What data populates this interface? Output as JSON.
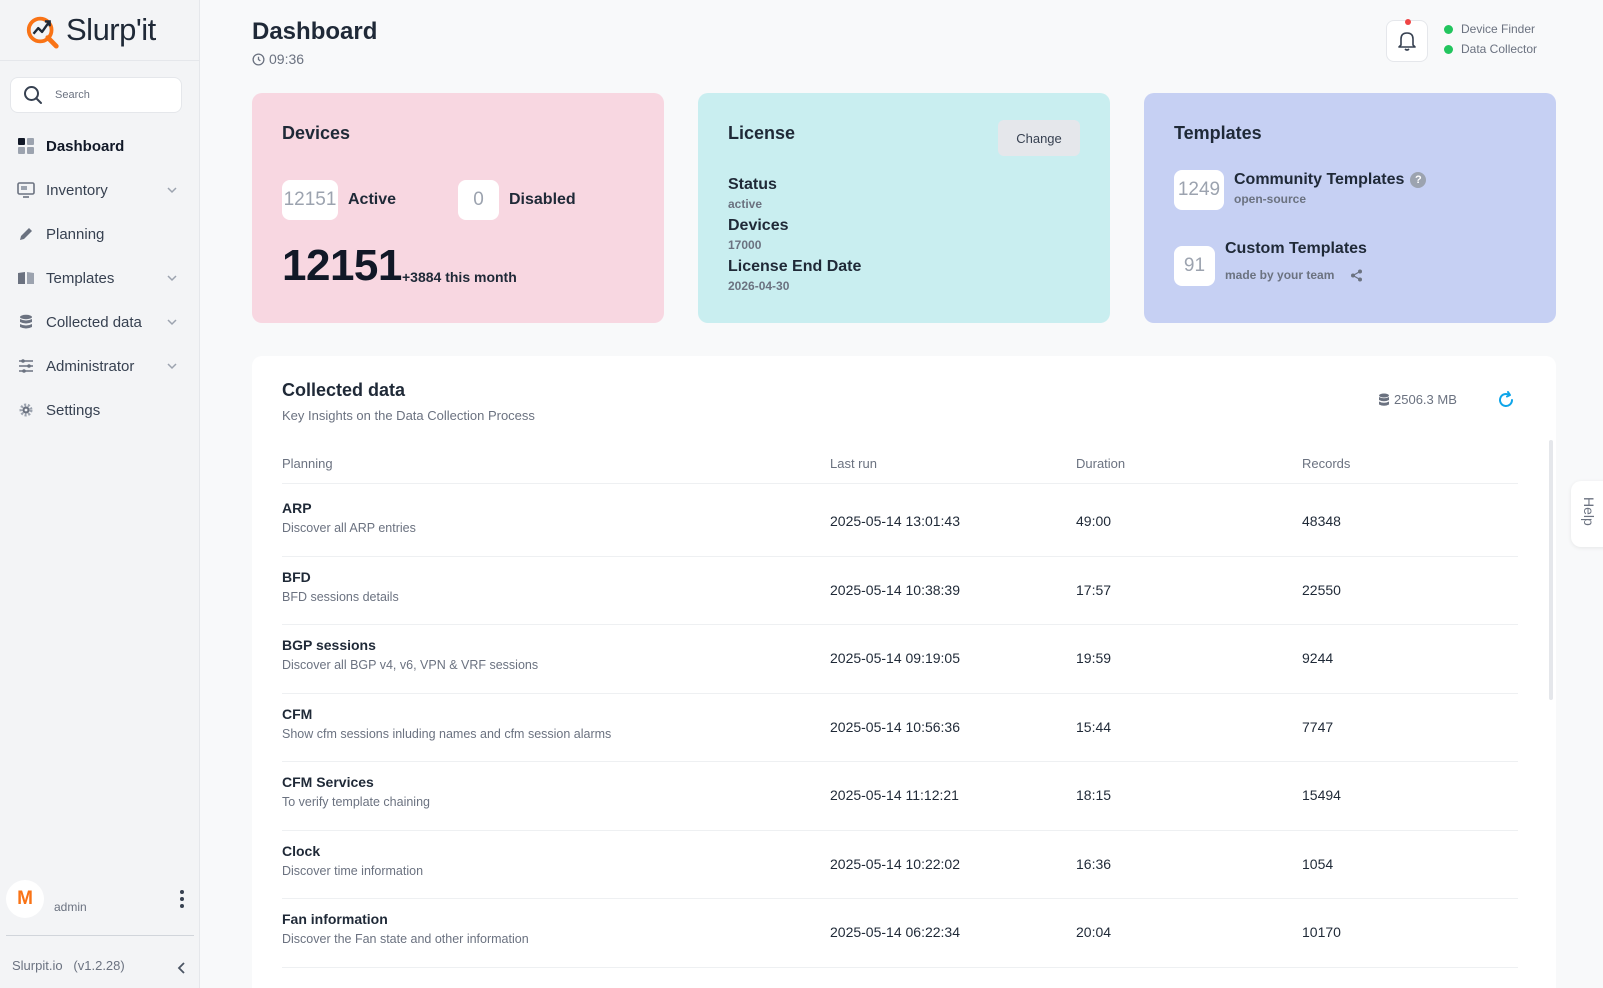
{
  "app": {
    "name": "Slurp'it",
    "footer_site": "Slurpit.io",
    "footer_version": "(v1.2.28)"
  },
  "search": {
    "placeholder": "Search"
  },
  "sidebar": {
    "items": [
      {
        "label": "Dashboard",
        "icon": "dashboard-icon",
        "active": true
      },
      {
        "label": "Inventory",
        "icon": "monitor-icon",
        "expandable": true
      },
      {
        "label": "Planning",
        "icon": "pencil-icon"
      },
      {
        "label": "Templates",
        "icon": "book-icon",
        "expandable": true
      },
      {
        "label": "Collected data",
        "icon": "database-icon",
        "expandable": true
      },
      {
        "label": "Administrator",
        "icon": "sliders-icon",
        "expandable": true
      },
      {
        "label": "Settings",
        "icon": "gear-icon"
      }
    ]
  },
  "user": {
    "avatar_letter": "M",
    "name": "admin"
  },
  "header": {
    "title": "Dashboard",
    "time": "09:36",
    "statuses": [
      "Device Finder",
      "Data Collector"
    ]
  },
  "devices_card": {
    "title": "Devices",
    "active_count": "12151",
    "active_label": "Active",
    "disabled_count": "0",
    "disabled_label": "Disabled",
    "total": "12151",
    "month_delta": "+3884 this month"
  },
  "license_card": {
    "title": "License",
    "change_label": "Change",
    "status_label": "Status",
    "status_value": "active",
    "devices_label": "Devices",
    "devices_value": "17000",
    "end_label": "License End Date",
    "end_value": "2026-04-30"
  },
  "templates_card": {
    "title": "Templates",
    "community_count": "1249",
    "community_label": "Community Templates",
    "community_sub": "open-source",
    "custom_count": "91",
    "custom_label": "Custom Templates",
    "custom_sub": "made by your team"
  },
  "collected": {
    "title": "Collected data",
    "subtitle": "Key Insights on the Data Collection Process",
    "storage": "2506.3 MB",
    "columns": [
      "Planning",
      "Last run",
      "Duration",
      "Records"
    ],
    "rows": [
      {
        "name": "ARP",
        "desc": "Discover all ARP entries",
        "last_run": "2025-05-14 13:01:43",
        "duration": "49:00",
        "records": "48348"
      },
      {
        "name": "BFD",
        "desc": "BFD sessions details",
        "last_run": "2025-05-14 10:38:39",
        "duration": "17:57",
        "records": "22550"
      },
      {
        "name": "BGP sessions",
        "desc": "Discover all BGP v4, v6, VPN & VRF sessions",
        "last_run": "2025-05-14 09:19:05",
        "duration": "19:59",
        "records": "9244"
      },
      {
        "name": "CFM",
        "desc": "Show cfm sessions inluding names and cfm session alarms",
        "last_run": "2025-05-14 10:56:36",
        "duration": "15:44",
        "records": "7747"
      },
      {
        "name": "CFM Services",
        "desc": "To verify template chaining",
        "last_run": "2025-05-14 11:12:21",
        "duration": "18:15",
        "records": "15494"
      },
      {
        "name": "Clock",
        "desc": "Discover time information",
        "last_run": "2025-05-14 10:22:02",
        "duration": "16:36",
        "records": "1054"
      },
      {
        "name": "Fan information",
        "desc": "Discover the Fan state and other information",
        "last_run": "2025-05-14 06:22:34",
        "duration": "20:04",
        "records": "10170"
      }
    ]
  },
  "help": {
    "label": "Help"
  },
  "colors": {
    "brand_orange": "#f97316",
    "devices_card": "#f8d7e1",
    "license_card": "#c9eef0",
    "templates_card": "#c6d0f3",
    "status_green": "#22c55e",
    "notification_red": "#ef4444",
    "refresh_blue": "#0ea5e9"
  }
}
